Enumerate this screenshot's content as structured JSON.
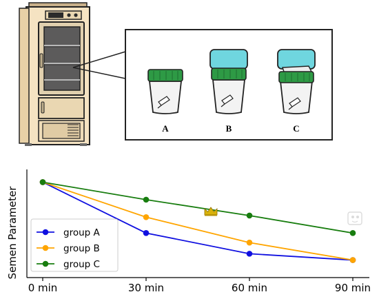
{
  "illustration": {
    "device": "refrigerator-icon",
    "cups": [
      {
        "label": "A",
        "lid": "none"
      },
      {
        "label": "B",
        "lid": "closed"
      },
      {
        "label": "C",
        "lid": "open"
      }
    ],
    "colors": {
      "cabinet": "#f5e3c2",
      "green_band": "#2e9a45",
      "lid_cyan": "#6fd6df"
    }
  },
  "chart_data": {
    "type": "line",
    "categories": [
      "0 min",
      "30 min",
      "60 min",
      "90 min"
    ],
    "ylabel": "Semen Parameter",
    "xlabel": "",
    "y_ticks_shown": false,
    "grid": false,
    "legend": "lower-left",
    "series": [
      {
        "name": "group A",
        "color": "#1010e0",
        "values": [
          100,
          68,
          55,
          51
        ]
      },
      {
        "name": "group B",
        "color": "#ffa500",
        "values": [
          100,
          78,
          62,
          51
        ]
      },
      {
        "name": "group C",
        "color": "#187d0f",
        "values": [
          100,
          89,
          79,
          68
        ]
      }
    ],
    "ylim": [
      40,
      108
    ],
    "annotations": [
      {
        "icon": "crown-icon",
        "color": "#d9b20a"
      }
    ]
  }
}
